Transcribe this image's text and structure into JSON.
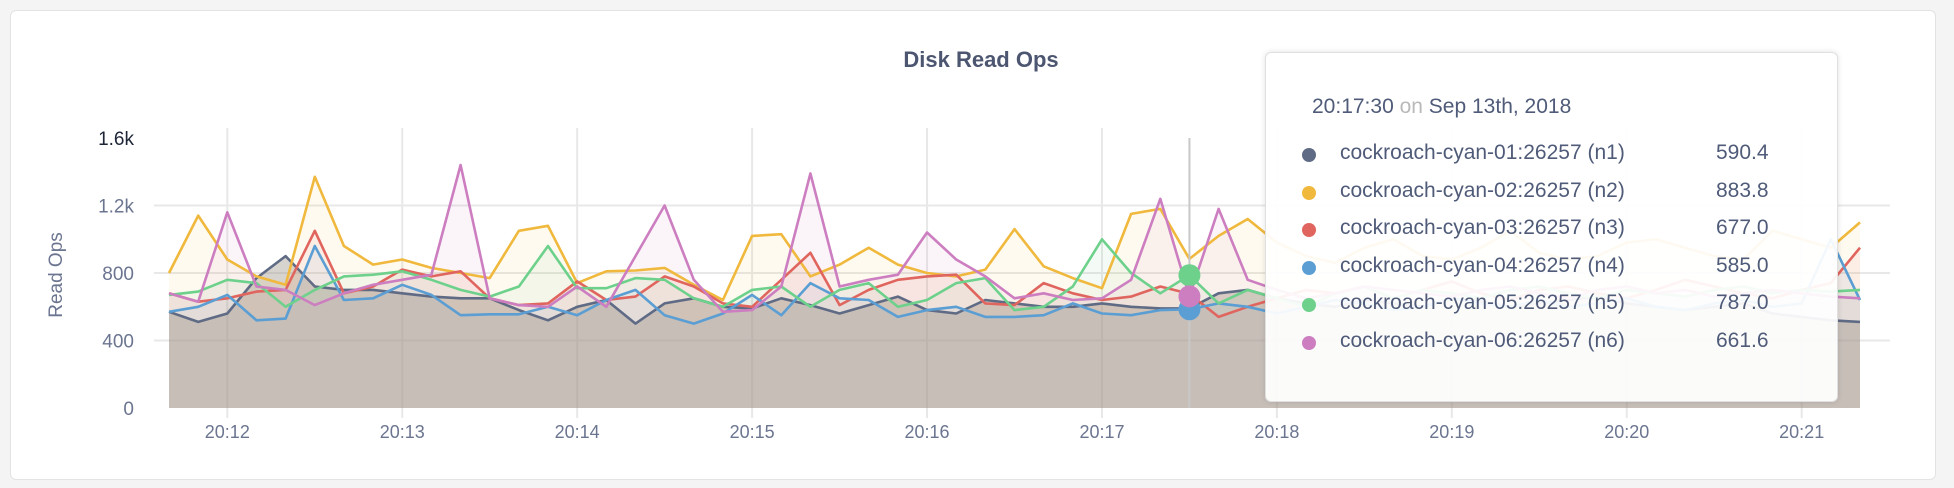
{
  "chart_data": {
    "type": "area",
    "title": "Disk Read Ops",
    "ylabel": "Read Ops",
    "xlabel": "",
    "ylim": [
      0,
      1600
    ],
    "yticks": [
      "0",
      "400",
      "800",
      "1.2k",
      "1.6k"
    ],
    "ytick_values": [
      0,
      400,
      800,
      1200,
      1600
    ],
    "xticks": [
      "20:12",
      "20:13",
      "20:14",
      "20:15",
      "20:16",
      "20:17",
      "20:18",
      "20:19",
      "20:20",
      "20:21"
    ],
    "x_start": "20:11:40",
    "x_end": "20:21:20",
    "x_interval_seconds": 10,
    "grid": true,
    "series": [
      {
        "name": "cockroach-cyan-01:26257 (n1)",
        "color": "#5f6b85",
        "values": [
          570,
          510,
          560,
          770,
          900,
          720,
          700,
          700,
          680,
          660,
          650,
          650,
          580,
          520,
          600,
          640,
          500,
          620,
          650,
          600,
          590,
          650,
          610,
          560,
          610,
          660,
          580,
          560,
          640,
          620,
          600,
          600,
          620,
          600,
          590,
          590.4,
          680,
          700,
          650,
          620,
          600,
          640,
          620,
          600,
          650,
          630,
          600,
          620,
          640,
          660,
          620,
          600,
          580,
          600,
          620,
          560,
          540,
          520,
          510
        ]
      },
      {
        "name": "cockroach-cyan-02:26257 (n2)",
        "color": "#f0b93d",
        "values": [
          800,
          1140,
          880,
          780,
          730,
          1370,
          960,
          850,
          880,
          830,
          800,
          770,
          1050,
          1080,
          740,
          810,
          815,
          830,
          730,
          640,
          1020,
          1030,
          780,
          850,
          950,
          850,
          800,
          780,
          820,
          1060,
          840,
          770,
          710,
          1150,
          1180,
          883.8,
          1020,
          1120,
          980,
          900,
          860,
          950,
          1000,
          900,
          880,
          950,
          1050,
          920,
          880,
          900,
          980,
          1000,
          950,
          900,
          880,
          1050,
          1000,
          950,
          1100
        ]
      },
      {
        "name": "cockroach-cyan-03:26257 (n3)",
        "color": "#e0655e",
        "values": [
          680,
          630,
          650,
          690,
          700,
          1050,
          680,
          720,
          820,
          780,
          810,
          650,
          610,
          620,
          750,
          640,
          660,
          780,
          720,
          620,
          600,
          760,
          920,
          610,
          700,
          760,
          780,
          790,
          620,
          610,
          740,
          680,
          640,
          660,
          720,
          677,
          540,
          600,
          650,
          700,
          680,
          720,
          650,
          700,
          750,
          680,
          640,
          700,
          720,
          680,
          650,
          700,
          760,
          720,
          680,
          650,
          700,
          740,
          950
        ]
      },
      {
        "name": "cockroach-cyan-04:26257 (n4)",
        "color": "#5b9ed3",
        "values": [
          570,
          600,
          670,
          520,
          530,
          960,
          640,
          650,
          730,
          670,
          550,
          555,
          555,
          600,
          550,
          640,
          700,
          550,
          500,
          560,
          670,
          550,
          740,
          650,
          640,
          540,
          580,
          600,
          540,
          540,
          550,
          620,
          560,
          550,
          580,
          585,
          620,
          600,
          560,
          600,
          640,
          620,
          580,
          600,
          650,
          620,
          600,
          640,
          600,
          620,
          650,
          600,
          580,
          620,
          640,
          600,
          620,
          1000,
          640
        ]
      },
      {
        "name": "cockroach-cyan-05:26257 (n5)",
        "color": "#6dd18c",
        "values": [
          670,
          690,
          760,
          740,
          600,
          700,
          780,
          790,
          810,
          760,
          700,
          660,
          720,
          960,
          710,
          710,
          770,
          760,
          650,
          600,
          700,
          720,
          600,
          700,
          740,
          600,
          640,
          740,
          770,
          580,
          600,
          720,
          1000,
          800,
          680,
          787,
          620,
          700,
          650,
          600,
          680,
          720,
          650,
          700,
          680,
          650,
          700,
          720,
          680,
          650,
          700,
          680,
          660,
          700,
          720,
          680,
          700,
          690,
          700
        ]
      },
      {
        "name": "cockroach-cyan-06:26257 (n6)",
        "color": "#cc7ec0",
        "values": [
          680,
          630,
          1160,
          720,
          700,
          610,
          680,
          730,
          760,
          790,
          1440,
          650,
          610,
          600,
          720,
          600,
          900,
          1200,
          760,
          570,
          580,
          720,
          1390,
          720,
          760,
          790,
          1040,
          880,
          780,
          650,
          680,
          640,
          650,
          760,
          1240,
          661.6,
          1180,
          760,
          700,
          650,
          680,
          720,
          700,
          680,
          660,
          700,
          720,
          680,
          650,
          700,
          720,
          680,
          700,
          660,
          680,
          700,
          680,
          660,
          650
        ]
      }
    ],
    "hover_index": 35
  },
  "tooltip": {
    "time": "20:17:30",
    "on": "on",
    "date": "Sep 13th, 2018",
    "rows": [
      {
        "name": "cockroach-cyan-01:26257 (n1)",
        "value": "590.4",
        "color": "#5f6b85"
      },
      {
        "name": "cockroach-cyan-02:26257 (n2)",
        "value": "883.8",
        "color": "#f0b93d"
      },
      {
        "name": "cockroach-cyan-03:26257 (n3)",
        "value": "677.0",
        "color": "#e0655e"
      },
      {
        "name": "cockroach-cyan-04:26257 (n4)",
        "value": "585.0",
        "color": "#5b9ed3"
      },
      {
        "name": "cockroach-cyan-05:26257 (n5)",
        "value": "787.0",
        "color": "#6dd18c"
      },
      {
        "name": "cockroach-cyan-06:26257 (n6)",
        "value": "661.6",
        "color": "#cc7ec0"
      }
    ]
  }
}
